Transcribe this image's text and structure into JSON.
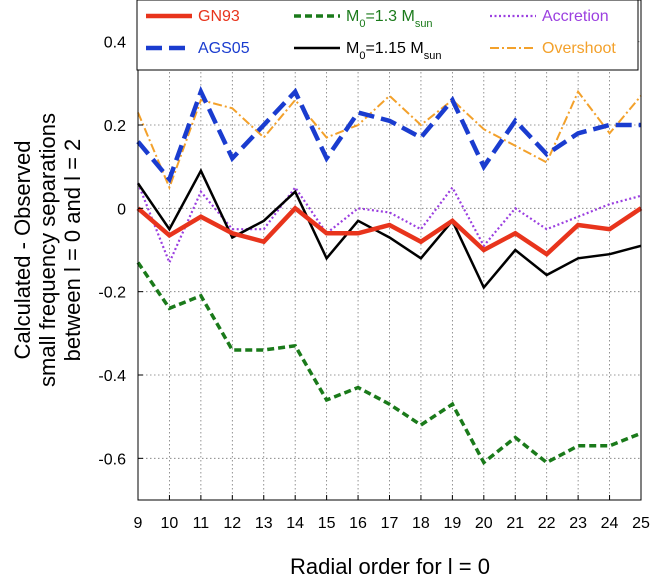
{
  "chart_data": {
    "type": "line",
    "title": "",
    "xlabel": "Radial order for l = 0",
    "ylabel_lines": [
      "Calculated - Observed",
      "small frequency separations",
      "between l = 0 and l = 2"
    ],
    "xlim": [
      9,
      25
    ],
    "ylim": [
      -0.7,
      0.5
    ],
    "xticks": [
      9,
      10,
      11,
      12,
      13,
      14,
      15,
      16,
      17,
      18,
      19,
      20,
      21,
      22,
      23,
      24,
      25
    ],
    "yticks": [
      -0.6,
      -0.4,
      -0.2,
      0,
      0.2,
      0.4
    ],
    "ytick_labels": [
      "-0.6",
      "-0.4",
      "-0.2",
      "0",
      "0.2",
      "0.4"
    ],
    "grid": true,
    "legend_position": "top",
    "x": [
      9,
      10,
      11,
      12,
      13,
      14,
      15,
      16,
      17,
      18,
      19,
      20,
      21,
      22,
      23,
      24,
      25
    ],
    "series": [
      {
        "name": "GN93",
        "color": "#e8341c",
        "values": [
          0,
          -0.065,
          -0.02,
          -0.06,
          -0.08,
          0,
          -0.06,
          -0.06,
          -0.04,
          -0.08,
          -0.03,
          -0.1,
          -0.06,
          -0.11,
          -0.04,
          -0.05,
          0
        ]
      },
      {
        "name": "AGS05",
        "color": "#1a3ccf",
        "values": [
          0.16,
          0.07,
          0.28,
          0.12,
          0.2,
          0.28,
          0.12,
          0.23,
          0.21,
          0.17,
          0.26,
          0.1,
          0.21,
          0.13,
          0.18,
          0.2,
          0.2
        ]
      },
      {
        "name": "M0=1.3 Msun",
        "label_main": "M",
        "label_sub": "0",
        "label_mid": "=1.3 M",
        "label_sub2": "sun",
        "color": "#1a7a1a",
        "values": [
          -0.13,
          -0.24,
          -0.21,
          -0.34,
          -0.34,
          -0.33,
          -0.46,
          -0.43,
          -0.47,
          -0.52,
          -0.47,
          -0.61,
          -0.55,
          -0.61,
          -0.57,
          -0.57,
          -0.54
        ]
      },
      {
        "name": "M0=1.15 Msun",
        "label_main": "M",
        "label_sub": "0",
        "label_mid": "=1.15 M",
        "label_sub2": "sun",
        "color": "#000000",
        "values": [
          0.06,
          -0.05,
          0.09,
          -0.07,
          -0.03,
          0.04,
          -0.12,
          -0.03,
          -0.07,
          -0.12,
          -0.03,
          -0.19,
          -0.1,
          -0.16,
          -0.12,
          -0.11,
          -0.09
        ]
      },
      {
        "name": "Accretion",
        "color": "#9b3fe0",
        "values": [
          0.06,
          -0.13,
          0.04,
          -0.05,
          -0.05,
          0.05,
          -0.06,
          0,
          -0.01,
          -0.05,
          0.05,
          -0.09,
          0,
          -0.05,
          -0.02,
          0.01,
          0.03
        ]
      },
      {
        "name": "Overshoot",
        "color": "#f3a12b",
        "values": [
          0.23,
          0.05,
          0.26,
          0.24,
          0.17,
          0.26,
          0.17,
          0.2,
          0.27,
          0.2,
          0.26,
          0.19,
          0.15,
          0.11,
          0.28,
          0.18,
          0.27
        ]
      }
    ]
  }
}
